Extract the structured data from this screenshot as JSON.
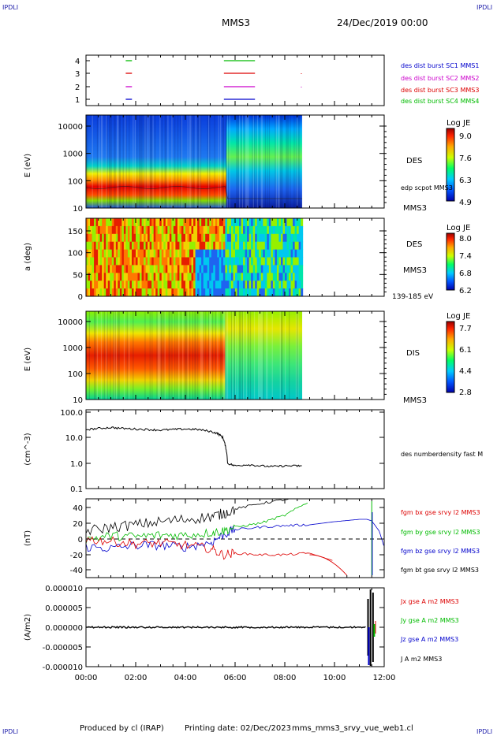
{
  "header": {
    "logo_left": "IPDLI",
    "logo_right": "IPDLI",
    "mission": "MMS3",
    "date": "24/Dec/2019 00:00"
  },
  "footer": {
    "produced": "Produced by cl (IRAP)",
    "printing": "Printing date: 02/Dec/2023",
    "file": "mms_mms3_srvy_vue_web1.cl",
    "logo_left": "IPDLI",
    "logo_right": "IPDLI"
  },
  "time_axis": [
    "00:00",
    "02:00",
    "04:00",
    "06:00",
    "08:00",
    "10:00",
    "12:00"
  ],
  "panels": {
    "burst": {
      "yticks": [
        "4",
        "3",
        "2",
        "1"
      ],
      "labels": [
        {
          "text": "des dist burst SC1 MMS1",
          "color": "#0000cc"
        },
        {
          "text": "des dist burst SC2 MMS2",
          "color": "#cc00cc"
        },
        {
          "text": "des dist burst SC3 MMS3",
          "color": "#dd0000"
        },
        {
          "text": "des dist burst SC4 MMS4",
          "color": "#00bb00"
        }
      ]
    },
    "des_e": {
      "ylabel": "E (eV)",
      "yticks": [
        "10000",
        "1000",
        "100",
        "10"
      ],
      "side_main": "DES",
      "side_sub": "edp scpot MMS3",
      "side_bottom": "MMS3",
      "cb_title": "Log JE",
      "cb_ticks": [
        "9.0",
        "7.6",
        "6.3",
        "4.9"
      ]
    },
    "des_pa": {
      "ylabel": "a (deg)",
      "yticks": [
        "150",
        "100",
        "50",
        "0"
      ],
      "side_main": "DES",
      "side_bottom": "MMS3",
      "side_energy": "139-185 eV",
      "cb_title": "Log JE",
      "cb_ticks": [
        "8.0",
        "7.4",
        "6.8",
        "6.2"
      ]
    },
    "dis_e": {
      "ylabel": "E (eV)",
      "yticks": [
        "10000",
        "1000",
        "100",
        "10"
      ],
      "side_main": "DIS",
      "side_bottom": "MMS3",
      "cb_title": "Log JE",
      "cb_ticks": [
        "7.7",
        "6.1",
        "4.4",
        "2.8"
      ]
    },
    "density": {
      "ylabel": "(cm^-3)",
      "yticks": [
        "100.0",
        "10.0",
        "1.0",
        "0.1"
      ],
      "side": "des numberdensity fast M"
    },
    "bfield": {
      "ylabel": "(nT)",
      "yticks": [
        "40",
        "20",
        "0",
        "-20",
        "-40"
      ],
      "labels": [
        {
          "text": "fgm bx gse srvy l2 MMS3",
          "color": "#dd0000"
        },
        {
          "text": "fgm by gse srvy l2 MMS3",
          "color": "#00bb00"
        },
        {
          "text": "fgm bz gse srvy l2 MMS3",
          "color": "#0000cc"
        },
        {
          "text": "fgm bt gse srvy l2 MMS3",
          "color": "#000000"
        }
      ]
    },
    "current": {
      "ylabel": "(A/m2)",
      "yticks": [
        "0.000010",
        "0.000005",
        "0.000000",
        "-0.000005",
        "-0.000010"
      ],
      "labels": [
        {
          "text": "Jx gse A m2 MMS3",
          "color": "#dd0000"
        },
        {
          "text": "Jy gse A m2 MMS3",
          "color": "#00bb00"
        },
        {
          "text": "Jz gse A m2 MMS3",
          "color": "#0000cc"
        },
        {
          "text": "J A m2 MMS3",
          "color": "#000000"
        }
      ]
    }
  },
  "chart_data": {
    "type": "line",
    "x_range_hours": [
      0,
      12
    ],
    "density_cm3": {
      "t": [
        0.0,
        0.5,
        1.0,
        1.5,
        2.0,
        2.5,
        3.0,
        3.5,
        4.0,
        4.5,
        5.0,
        5.3,
        5.5,
        5.6,
        5.7,
        6.0,
        6.5,
        7.0,
        7.5,
        8.0,
        8.5,
        8.7
      ],
      "v": [
        20,
        22,
        24,
        22,
        21,
        20,
        19,
        20,
        21,
        20,
        17,
        14,
        10,
        5,
        1.0,
        0.8,
        0.9,
        0.8,
        0.75,
        0.8,
        0.8,
        0.8
      ]
    },
    "bfield_nT": {
      "t": [
        0,
        1,
        2,
        3,
        4,
        5,
        5.5,
        6,
        7,
        8,
        9,
        10,
        11,
        11.3,
        11.5,
        11.8,
        12
      ],
      "bx": [
        0,
        -3,
        -6,
        -5,
        -8,
        -12,
        -20,
        -18,
        -20,
        -20,
        -18,
        -28,
        null,
        null,
        null,
        null,
        null
      ],
      "by": [
        0,
        4,
        3,
        5,
        5,
        8,
        10,
        15,
        20,
        30,
        48,
        null,
        null,
        null,
        null,
        null,
        null
      ],
      "bz": [
        -10,
        -12,
        -8,
        -8,
        -10,
        -5,
        5,
        12,
        15,
        17,
        18,
        22,
        25,
        25,
        23,
        10,
        -10
      ],
      "bt": [
        10,
        15,
        18,
        22,
        25,
        28,
        32,
        38,
        45,
        50,
        55,
        null,
        null,
        null,
        null,
        null,
        null
      ]
    },
    "current_Am2": {
      "spike_time_hours": 11.5,
      "peak_j": 1e-05,
      "peak_jz": -1e-05
    }
  }
}
